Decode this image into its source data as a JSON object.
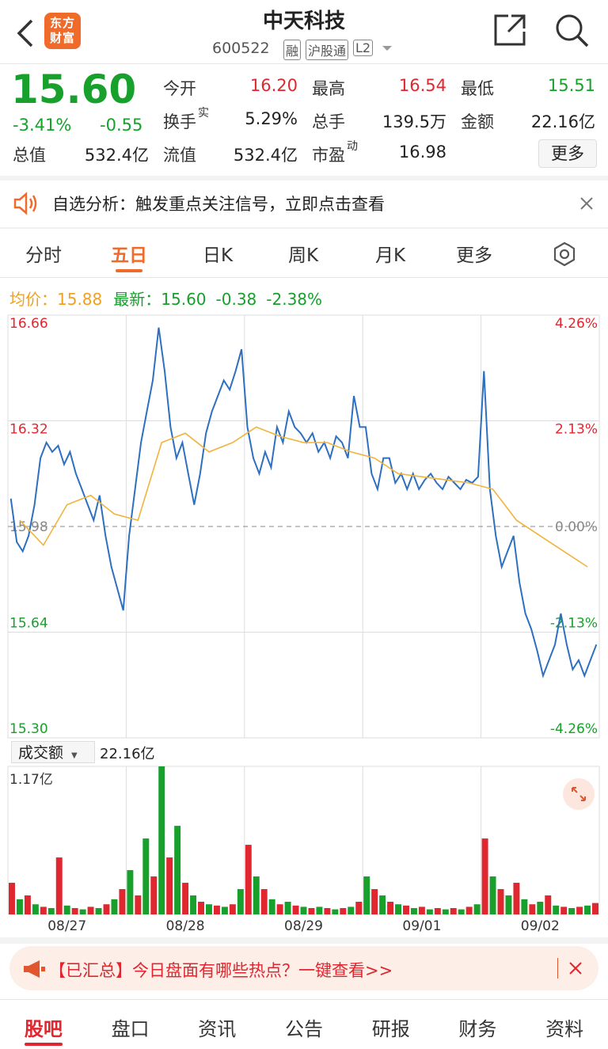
{
  "header": {
    "title": "中天科技",
    "code": "600522",
    "logo": "东方财富",
    "badges": [
      "融",
      "沪股通",
      "L2"
    ]
  },
  "quote": {
    "price": "15.60",
    "change_pct": "-3.41%",
    "change": "-0.55",
    "fields": [
      {
        "label": "今开",
        "value": "16.20"
      },
      {
        "label": "最高",
        "value": "16.54"
      },
      {
        "label": "最低",
        "value": "15.51"
      },
      {
        "label": "换手",
        "sup": "实",
        "value": "5.29%"
      },
      {
        "label": "总手",
        "value": "139.5万"
      },
      {
        "label": "金额",
        "value": "22.16亿"
      },
      {
        "label": "总值",
        "value": "532.4亿"
      },
      {
        "label": "流值",
        "value": "532.4亿"
      },
      {
        "label": "市盈",
        "sup": "动",
        "value": "16.98"
      }
    ],
    "more_button": "更多"
  },
  "notice": "自选分析：触发重点关注信号，立即点击查看",
  "tabs": [
    "分时",
    "五日",
    "日K",
    "周K",
    "月K",
    "更多"
  ],
  "active_tab": "五日",
  "info": {
    "avg_label": "均价：",
    "avg": "15.88",
    "last_label": "最新：",
    "last": "15.60",
    "change": "-0.38",
    "change_pct": "-2.38%"
  },
  "chart": {
    "type": "line",
    "ylim": [
      15.3,
      16.66
    ],
    "yticks": [
      16.66,
      16.32,
      15.98,
      15.64,
      {
        "value": 15.3,
        "label": "15.30"
      }
    ],
    "y2lim": [
      -4.26,
      4.26
    ],
    "y2ticks": [
      {
        "value": 4.26,
        "label": "4.26%"
      },
      {
        "value": 2.13,
        "label": "2.13%"
      },
      {
        "value": 0,
        "label": "0.00%"
      },
      {
        "value": -2.13,
        "label": "-2.13%"
      },
      {
        "value": -4.26,
        "label": "-4.26%"
      }
    ],
    "categories": [
      "08/27",
      "08/28",
      "08/29",
      "09/01",
      "09/02"
    ],
    "series": [
      {
        "color": "#2e6fc0",
        "values": [
          16.07,
          15.93,
          15.9,
          15.95,
          16.05,
          16.2,
          16.25,
          16.22,
          16.24,
          16.18,
          16.22,
          16.15,
          16.1,
          16.05,
          16.0,
          16.08,
          15.95,
          15.85,
          15.78,
          15.71,
          15.95,
          16.1,
          16.25,
          16.35,
          16.45,
          16.62,
          16.48,
          16.3,
          16.2,
          16.25,
          16.15,
          16.05,
          16.15,
          16.28,
          16.35,
          16.4,
          16.45,
          16.42,
          16.48,
          16.55,
          16.3,
          16.2,
          16.15,
          16.22,
          16.17,
          16.3,
          16.25,
          16.35,
          16.3,
          16.28,
          16.25,
          16.28,
          16.22,
          16.25,
          16.2,
          16.27,
          16.25,
          16.2,
          16.4,
          16.3,
          16.3,
          16.15,
          16.1,
          16.2,
          16.2,
          16.12,
          16.15,
          16.1,
          16.15,
          16.1,
          16.13,
          16.15,
          16.12,
          16.1,
          16.14,
          16.12,
          16.1,
          16.13,
          16.12,
          16.14,
          16.48,
          16.1,
          15.95,
          15.85,
          15.9,
          15.95,
          15.8,
          15.7,
          15.65,
          15.58,
          15.5,
          15.55,
          15.6,
          15.7,
          15.6,
          15.52,
          15.55,
          15.5,
          15.55,
          15.6
        ]
      },
      {
        "color": "#f0b43c",
        "values": [
          16.0,
          15.92,
          16.05,
          16.08,
          16.02,
          16.0,
          16.25,
          16.28,
          16.22,
          16.25,
          16.3,
          16.27,
          16.25,
          16.25,
          16.22,
          16.2,
          16.15,
          16.14,
          16.13,
          16.12,
          16.1,
          16.0,
          15.95,
          15.9,
          15.85
        ]
      }
    ],
    "volume": {
      "label": "成交额",
      "total": "22.16亿",
      "max_label": "1.17亿",
      "ylim": [
        0,
        1.17
      ],
      "colors": [
        "#e0262f",
        "#17a02b"
      ],
      "values": [
        0.25,
        0.12,
        0.15,
        0.08,
        0.06,
        0.05,
        0.45,
        0.07,
        0.05,
        0.04,
        0.06,
        0.05,
        0.08,
        0.12,
        0.2,
        0.35,
        0.15,
        0.6,
        0.3,
        1.17,
        0.45,
        0.7,
        0.25,
        0.15,
        0.1,
        0.08,
        0.07,
        0.06,
        0.08,
        0.2,
        0.55,
        0.3,
        0.2,
        0.12,
        0.08,
        0.1,
        0.07,
        0.06,
        0.05,
        0.06,
        0.05,
        0.04,
        0.05,
        0.06,
        0.1,
        0.3,
        0.2,
        0.15,
        0.1,
        0.08,
        0.07,
        0.05,
        0.06,
        0.04,
        0.05,
        0.04,
        0.05,
        0.04,
        0.06,
        0.08,
        0.6,
        0.3,
        0.2,
        0.15,
        0.25,
        0.12,
        0.08,
        0.1,
        0.15,
        0.07,
        0.06,
        0.05,
        0.06,
        0.07,
        0.09
      ]
    }
  },
  "promo": "【已汇总】今日盘面有哪些热点？一键查看>>",
  "bottom_nav": [
    "股吧",
    "盘口",
    "资讯",
    "公告",
    "研报",
    "财务",
    "资料"
  ],
  "active_nav": "股吧"
}
